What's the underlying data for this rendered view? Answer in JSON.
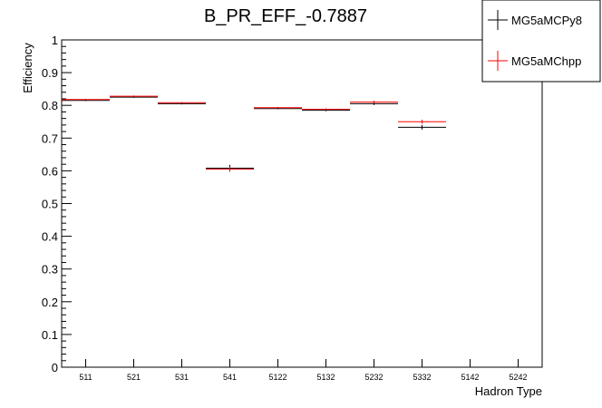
{
  "chart_data": {
    "type": "scatter",
    "title": "B_PR_EFF_-0.7887",
    "xlabel": "Hadron Type",
    "ylabel": "Efficiency",
    "ylim": [
      0,
      1
    ],
    "y_ticks": [
      "0",
      "0.1",
      "0.2",
      "0.3",
      "0.4",
      "0.5",
      "0.6",
      "0.7",
      "0.8",
      "0.9",
      "1"
    ],
    "categories": [
      "511",
      "521",
      "531",
      "541",
      "5122",
      "5132",
      "5232",
      "5332",
      "5142",
      "5242"
    ],
    "grid": false,
    "legend": "top-right",
    "series": [
      {
        "name": "MG5aMCPy8",
        "color": "#000000",
        "values": [
          0.815,
          0.825,
          0.805,
          0.608,
          0.79,
          0.785,
          0.805,
          0.733,
          null,
          null
        ],
        "errors": [
          0.002,
          0.002,
          0.002,
          0.01,
          0.002,
          0.003,
          0.004,
          0.007,
          null,
          null
        ]
      },
      {
        "name": "MG5aMChpp",
        "color": "#ff0000",
        "values": [
          0.818,
          0.828,
          0.808,
          0.605,
          0.793,
          0.788,
          0.81,
          0.75,
          null,
          null
        ],
        "errors": [
          0.002,
          0.002,
          0.002,
          0.008,
          0.002,
          0.003,
          0.004,
          0.006,
          null,
          null
        ]
      }
    ]
  }
}
